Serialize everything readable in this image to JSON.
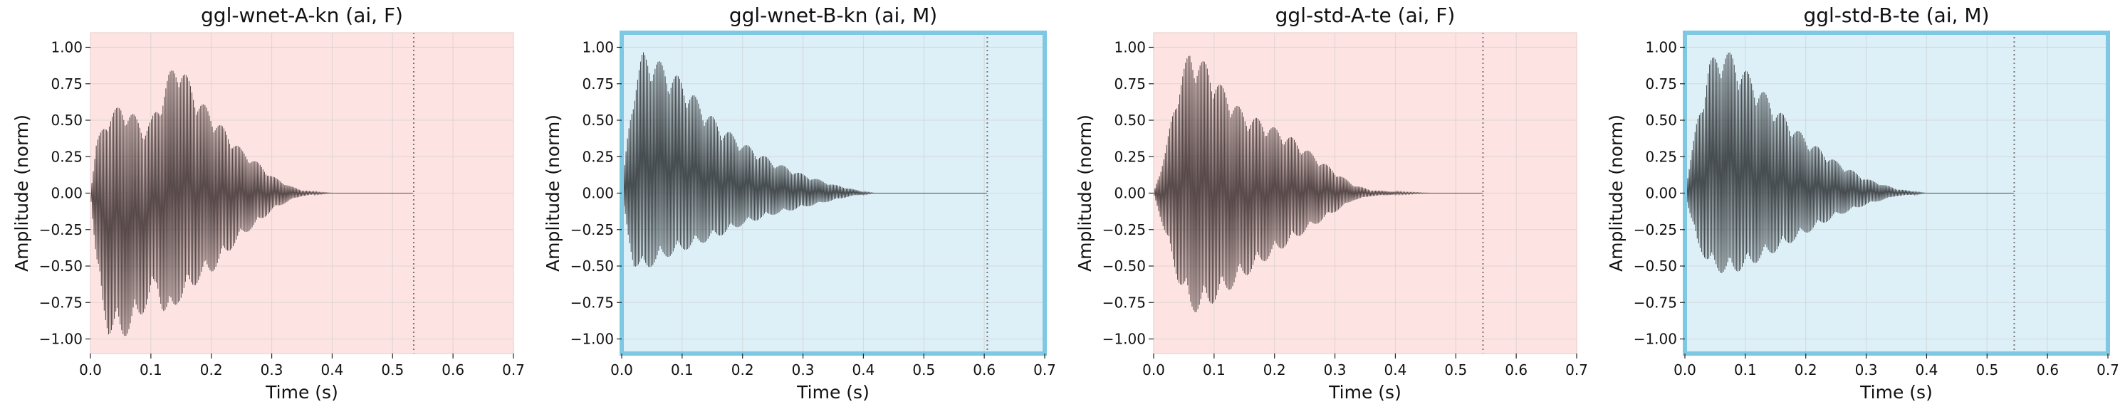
{
  "chart_data": [
    {
      "type": "line",
      "title": "ggl-wnet-A-kn (ai, F)",
      "xlabel": "Time (s)",
      "ylabel": "Amplitude (norm)",
      "xlim": [
        0,
        0.7
      ],
      "ylim": [
        -1.1,
        1.1
      ],
      "xticks": [
        "0.0",
        "0.1",
        "0.2",
        "0.3",
        "0.4",
        "0.5",
        "0.6",
        "0.7"
      ],
      "yticks": [
        "1.00",
        "0.75",
        "0.50",
        "0.25",
        "0.00",
        "−0.25",
        "−0.50",
        "−0.75",
        "−1.00"
      ],
      "grid": true,
      "background": "#fde3e1",
      "highlighted": false,
      "end_marker_x": 0.535,
      "waveform_color": "#3a2e2e",
      "envelope": {
        "t": [
          0.0,
          0.01,
          0.02,
          0.03,
          0.05,
          0.07,
          0.09,
          0.1,
          0.11,
          0.12,
          0.13,
          0.145,
          0.16,
          0.18,
          0.2,
          0.22,
          0.25,
          0.28,
          0.3,
          0.33,
          0.35,
          0.37,
          0.4,
          0.535
        ],
        "upper": [
          0.0,
          0.35,
          0.45,
          0.55,
          0.6,
          0.55,
          0.45,
          0.5,
          0.6,
          0.7,
          0.82,
          0.93,
          0.8,
          0.65,
          0.55,
          0.45,
          0.3,
          0.2,
          0.12,
          0.05,
          0.02,
          0.01,
          0.0,
          0.0
        ],
        "lower": [
          0.0,
          -0.5,
          -0.8,
          -0.97,
          -1.0,
          -0.95,
          -0.8,
          -0.75,
          -0.65,
          -0.82,
          -0.9,
          -0.75,
          -0.7,
          -0.6,
          -0.55,
          -0.45,
          -0.3,
          -0.2,
          -0.12,
          -0.05,
          -0.02,
          -0.01,
          0.0,
          0.0
        ]
      }
    },
    {
      "type": "line",
      "title": "ggl-wnet-B-kn (ai, M)",
      "xlabel": "Time (s)",
      "ylabel": "Amplitude (norm)",
      "xlim": [
        0,
        0.7
      ],
      "ylim": [
        -1.1,
        1.1
      ],
      "xticks": [
        "0.0",
        "0.1",
        "0.2",
        "0.3",
        "0.4",
        "0.5",
        "0.6",
        "0.7"
      ],
      "yticks": [
        "1.00",
        "0.75",
        "0.50",
        "0.25",
        "0.00",
        "−0.25",
        "−0.50",
        "−0.75",
        "−1.00"
      ],
      "grid": true,
      "background": "#ddeff7",
      "highlighted": true,
      "highlight_color": "#7ec8e3",
      "end_marker_x": 0.605,
      "waveform_color": "#2a2e30",
      "envelope": {
        "t": [
          0.0,
          0.01,
          0.02,
          0.035,
          0.05,
          0.07,
          0.1,
          0.13,
          0.16,
          0.2,
          0.25,
          0.3,
          0.35,
          0.38,
          0.4,
          0.42,
          0.605
        ],
        "upper": [
          0.0,
          0.4,
          0.75,
          0.97,
          0.95,
          0.88,
          0.78,
          0.62,
          0.48,
          0.35,
          0.22,
          0.13,
          0.06,
          0.03,
          0.01,
          0.0,
          0.0
        ],
        "lower": [
          0.0,
          -0.3,
          -0.5,
          -0.55,
          -0.5,
          -0.45,
          -0.4,
          -0.35,
          -0.3,
          -0.22,
          -0.15,
          -0.1,
          -0.05,
          -0.02,
          -0.01,
          0.0,
          0.0
        ]
      }
    },
    {
      "type": "line",
      "title": "ggl-std-A-te (ai, F)",
      "xlabel": "Time (s)",
      "ylabel": "Amplitude (norm)",
      "xlim": [
        0,
        0.7
      ],
      "ylim": [
        -1.1,
        1.1
      ],
      "xticks": [
        "0.0",
        "0.1",
        "0.2",
        "0.3",
        "0.4",
        "0.5",
        "0.6",
        "0.7"
      ],
      "yticks": [
        "1.00",
        "0.75",
        "0.50",
        "0.25",
        "0.00",
        "−0.25",
        "−0.50",
        "−0.75",
        "−1.00"
      ],
      "grid": true,
      "background": "#fde3e1",
      "highlighted": false,
      "end_marker_x": 0.545,
      "waveform_color": "#3a2e2e",
      "envelope": {
        "t": [
          0.0,
          0.02,
          0.04,
          0.06,
          0.07,
          0.09,
          0.11,
          0.13,
          0.15,
          0.18,
          0.2,
          0.23,
          0.26,
          0.3,
          0.33,
          0.36,
          0.4,
          0.46,
          0.545
        ],
        "upper": [
          0.0,
          0.3,
          0.75,
          0.98,
          0.95,
          0.88,
          0.75,
          0.65,
          0.55,
          0.5,
          0.45,
          0.38,
          0.28,
          0.15,
          0.06,
          0.02,
          0.01,
          0.0,
          0.0
        ],
        "lower": [
          0.0,
          -0.3,
          -0.6,
          -0.8,
          -0.82,
          -0.78,
          -0.72,
          -0.65,
          -0.58,
          -0.48,
          -0.42,
          -0.33,
          -0.24,
          -0.13,
          -0.05,
          -0.02,
          -0.01,
          0.0,
          0.0
        ]
      }
    },
    {
      "type": "line",
      "title": "ggl-std-B-te (ai, M)",
      "xlabel": "Time (s)",
      "ylabel": "Amplitude (norm)",
      "xlim": [
        0,
        0.7
      ],
      "ylim": [
        -1.1,
        1.1
      ],
      "xticks": [
        "0.0",
        "0.1",
        "0.2",
        "0.3",
        "0.4",
        "0.5",
        "0.6",
        "0.7"
      ],
      "yticks": [
        "1.00",
        "0.75",
        "0.50",
        "0.25",
        "0.00",
        "−0.25",
        "−0.50",
        "−0.75",
        "−1.00"
      ],
      "grid": true,
      "background": "#ddeff7",
      "highlighted": true,
      "highlight_color": "#7ec8e3",
      "end_marker_x": 0.545,
      "waveform_color": "#2a2e30",
      "envelope": {
        "t": [
          0.0,
          0.02,
          0.04,
          0.06,
          0.08,
          0.1,
          0.13,
          0.16,
          0.2,
          0.25,
          0.3,
          0.35,
          0.38,
          0.4,
          0.545
        ],
        "upper": [
          0.0,
          0.5,
          0.9,
          1.0,
          0.95,
          0.85,
          0.7,
          0.55,
          0.38,
          0.22,
          0.1,
          0.03,
          0.01,
          0.0,
          0.0
        ],
        "lower": [
          0.0,
          -0.35,
          -0.5,
          -0.55,
          -0.55,
          -0.52,
          -0.45,
          -0.38,
          -0.28,
          -0.16,
          -0.08,
          -0.02,
          -0.01,
          0.0,
          0.0
        ]
      }
    }
  ]
}
